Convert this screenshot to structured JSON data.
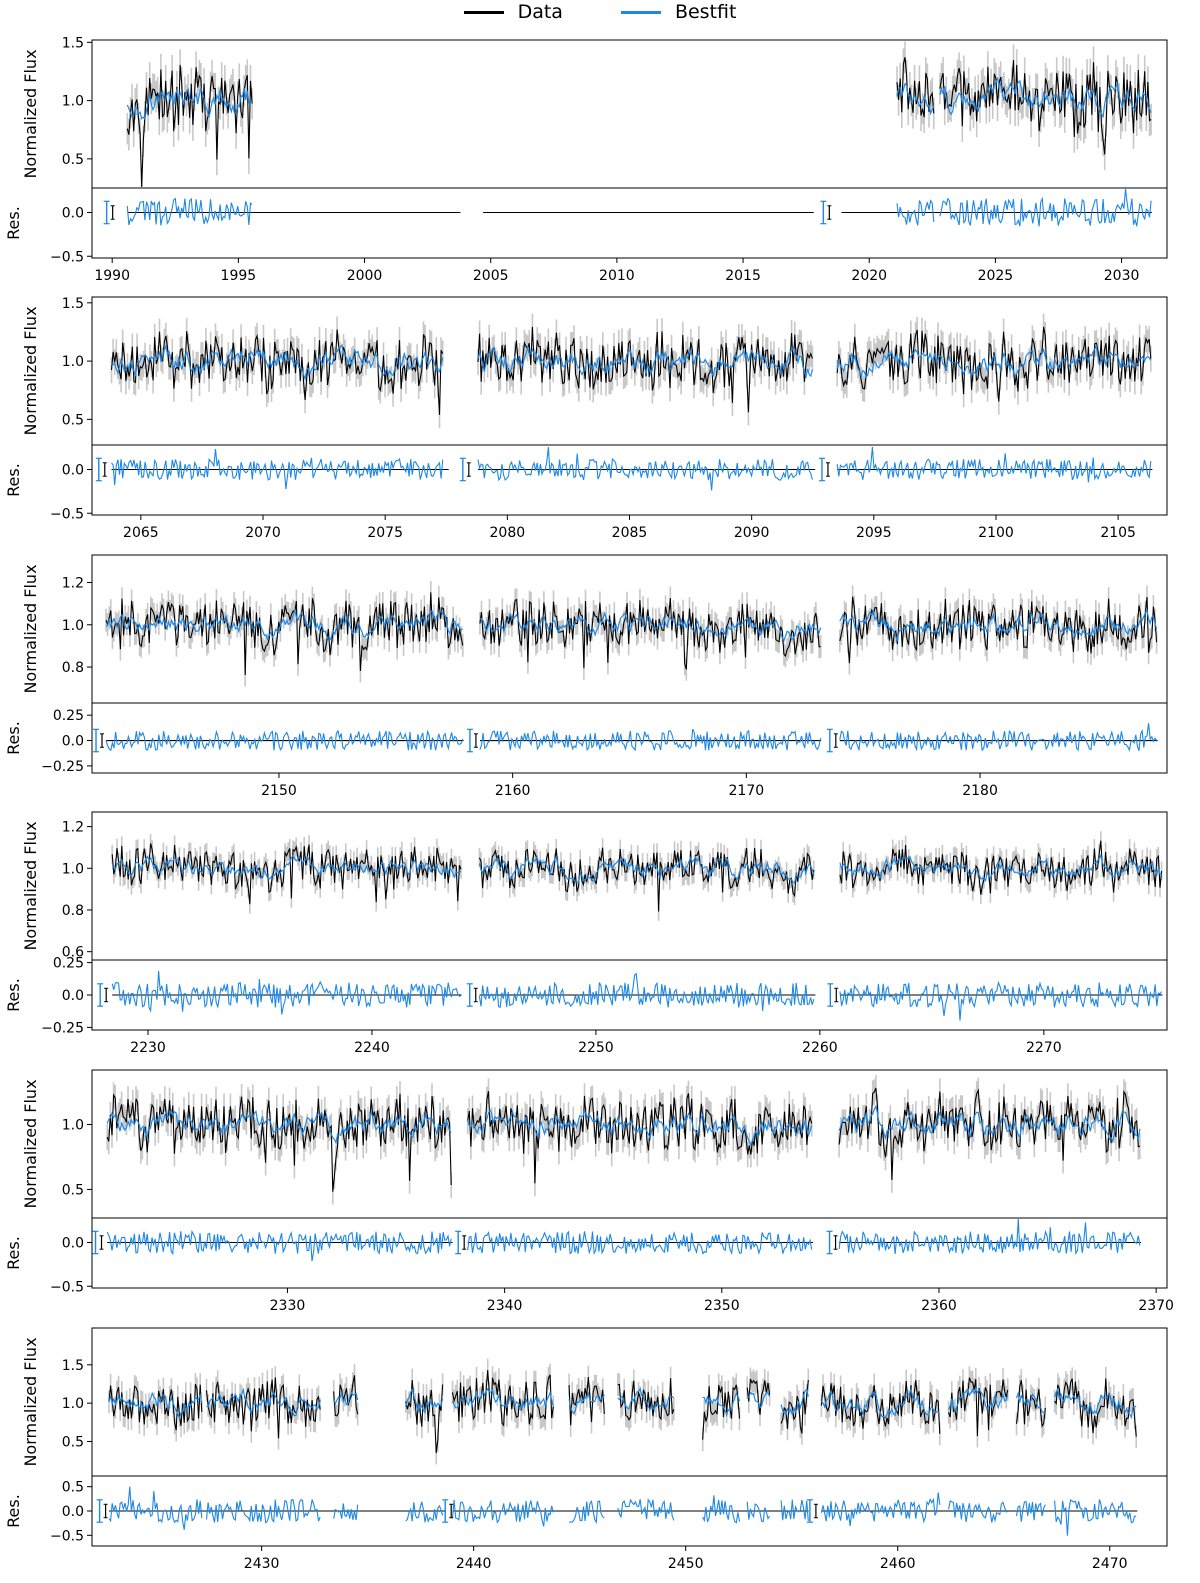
{
  "legend": {
    "data_label": "Data",
    "bestfit_label": "Bestfit",
    "data_color": "#000000",
    "bestfit_color": "#1e88e5",
    "error_color": "#c8c8c8"
  },
  "chart_data": [
    {
      "type": "line",
      "ylabel": "Normalized Flux",
      "res_ylabel": "Res.",
      "xlim": [
        1989.2,
        2031.8
      ],
      "ylim": [
        0.25,
        1.52
      ],
      "yticks": [
        0.5,
        1.0,
        1.5
      ],
      "res_ylim": [
        -0.52,
        0.28
      ],
      "res_yticks": [
        -0.5,
        0.0
      ],
      "xticks": [
        1990,
        1995,
        2000,
        2005,
        2010,
        2015,
        2020,
        2025,
        2030
      ],
      "segments": [
        [
          1990.6,
          1995.6
        ],
        [
          2021.1,
          2022.6
        ],
        [
          2022.8,
          2031.2
        ]
      ],
      "zero_lines": [
        [
          1990.6,
          2003.8
        ],
        [
          2004.7,
          2017.8
        ],
        [
          2018.9,
          2031.2
        ]
      ],
      "errorbars": [
        1989.9,
        2018.3
      ],
      "flux_amp": 0.3,
      "res_amp": 0.2
    },
    {
      "type": "line",
      "ylabel": "Normalized Flux",
      "res_ylabel": "Res.",
      "xlim": [
        2063.0,
        2107.0
      ],
      "ylim": [
        0.28,
        1.55
      ],
      "yticks": [
        0.5,
        1.0,
        1.5
      ],
      "res_ylim": [
        -0.52,
        0.28
      ],
      "res_yticks": [
        -0.5,
        0.0
      ],
      "xticks": [
        2065,
        2070,
        2075,
        2080,
        2085,
        2090,
        2095,
        2100,
        2105
      ],
      "segments": [
        [
          2063.8,
          2077.4
        ],
        [
          2078.8,
          2092.5
        ],
        [
          2093.5,
          2106.4
        ]
      ],
      "zero_lines": [
        [
          2063.8,
          2077.6
        ],
        [
          2078.8,
          2092.6
        ],
        [
          2093.5,
          2106.4
        ]
      ],
      "errorbars": [
        2063.4,
        2078.3,
        2093.0
      ],
      "flux_amp": 0.25,
      "res_amp": 0.15
    },
    {
      "type": "line",
      "ylabel": "Normalized Flux",
      "res_ylabel": "Res.",
      "xlim": [
        2142.0,
        2188.0
      ],
      "ylim": [
        0.63,
        1.33
      ],
      "yticks": [
        0.8,
        1.0,
        1.2
      ],
      "res_ylim": [
        -0.32,
        0.37
      ],
      "res_yticks": [
        -0.25,
        0.0,
        0.25
      ],
      "xticks": [
        2150,
        2160,
        2170,
        2180
      ],
      "segments": [
        [
          2142.6,
          2157.9
        ],
        [
          2158.6,
          2173.2
        ],
        [
          2174.0,
          2187.6
        ]
      ],
      "zero_lines": [
        [
          2142.6,
          2157.9
        ],
        [
          2158.6,
          2173.2
        ],
        [
          2174.0,
          2187.6
        ]
      ],
      "errorbars": [
        2142.3,
        2158.3,
        2173.7
      ],
      "flux_amp": 0.12,
      "res_amp": 0.12
    },
    {
      "type": "line",
      "ylabel": "Normalized Flux",
      "res_ylabel": "Res.",
      "xlim": [
        2227.5,
        2275.5
      ],
      "ylim": [
        0.56,
        1.27
      ],
      "yticks": [
        0.6,
        0.8,
        1.0,
        1.2
      ],
      "res_ylim": [
        -0.27,
        0.27
      ],
      "res_yticks": [
        -0.25,
        0.0,
        0.25
      ],
      "xticks": [
        2230,
        2240,
        2250,
        2260,
        2270
      ],
      "segments": [
        [
          2228.4,
          2244.0
        ],
        [
          2244.8,
          2259.8
        ],
        [
          2260.9,
          2275.3
        ]
      ],
      "zero_lines": [
        [
          2228.4,
          2244.0
        ],
        [
          2244.8,
          2259.8
        ],
        [
          2260.9,
          2275.3
        ]
      ],
      "errorbars": [
        2228.0,
        2244.5,
        2260.6
      ],
      "flux_amp": 0.1,
      "res_amp": 0.12
    },
    {
      "type": "line",
      "ylabel": "Normalized Flux",
      "res_ylabel": "Res.",
      "xlim": [
        2321.0,
        2370.5
      ],
      "ylim": [
        0.28,
        1.42
      ],
      "yticks": [
        0.5,
        1.0
      ],
      "res_ylim": [
        -0.52,
        0.28
      ],
      "res_yticks": [
        -0.5,
        0.0
      ],
      "xticks": [
        2330,
        2340,
        2350,
        2360,
        2370
      ],
      "segments": [
        [
          2321.7,
          2337.6
        ],
        [
          2338.3,
          2354.2
        ],
        [
          2355.4,
          2369.3
        ]
      ],
      "zero_lines": [
        [
          2321.7,
          2337.6
        ],
        [
          2338.3,
          2354.2
        ],
        [
          2355.4,
          2369.3
        ]
      ],
      "errorbars": [
        2321.3,
        2338.0,
        2355.1
      ],
      "flux_amp": 0.22,
      "res_amp": 0.16
    },
    {
      "type": "line",
      "ylabel": "Normalized Flux",
      "res_ylabel": "Res.",
      "xlim": [
        2422.0,
        2472.7
      ],
      "ylim": [
        0.05,
        1.98
      ],
      "yticks": [
        0.5,
        1.0,
        1.5
      ],
      "res_ylim": [
        -0.72,
        0.72
      ],
      "res_yticks": [
        -0.5,
        0.0,
        0.5
      ],
      "xticks": [
        2430,
        2440,
        2450,
        2460,
        2470
      ],
      "segments": [
        [
          2422.8,
          2427.2
        ],
        [
          2427.4,
          2432.8
        ],
        [
          2433.4,
          2434.6
        ],
        [
          2436.8,
          2438.6
        ],
        [
          2439.0,
          2443.8
        ],
        [
          2444.5,
          2446.2
        ],
        [
          2446.8,
          2449.5
        ],
        [
          2450.8,
          2452.6
        ],
        [
          2452.9,
          2454.0
        ],
        [
          2454.5,
          2455.8
        ],
        [
          2456.4,
          2462.0
        ],
        [
          2462.4,
          2465.2
        ],
        [
          2465.6,
          2467.0
        ],
        [
          2467.4,
          2471.3
        ]
      ],
      "zero_lines": [
        [
          2422.8,
          2438.7
        ],
        [
          2439.0,
          2455.8
        ],
        [
          2456.4,
          2471.3
        ]
      ],
      "errorbars": [
        2422.5,
        2438.8,
        2456.0
      ],
      "flux_amp": 0.33,
      "res_amp": 0.3
    }
  ]
}
